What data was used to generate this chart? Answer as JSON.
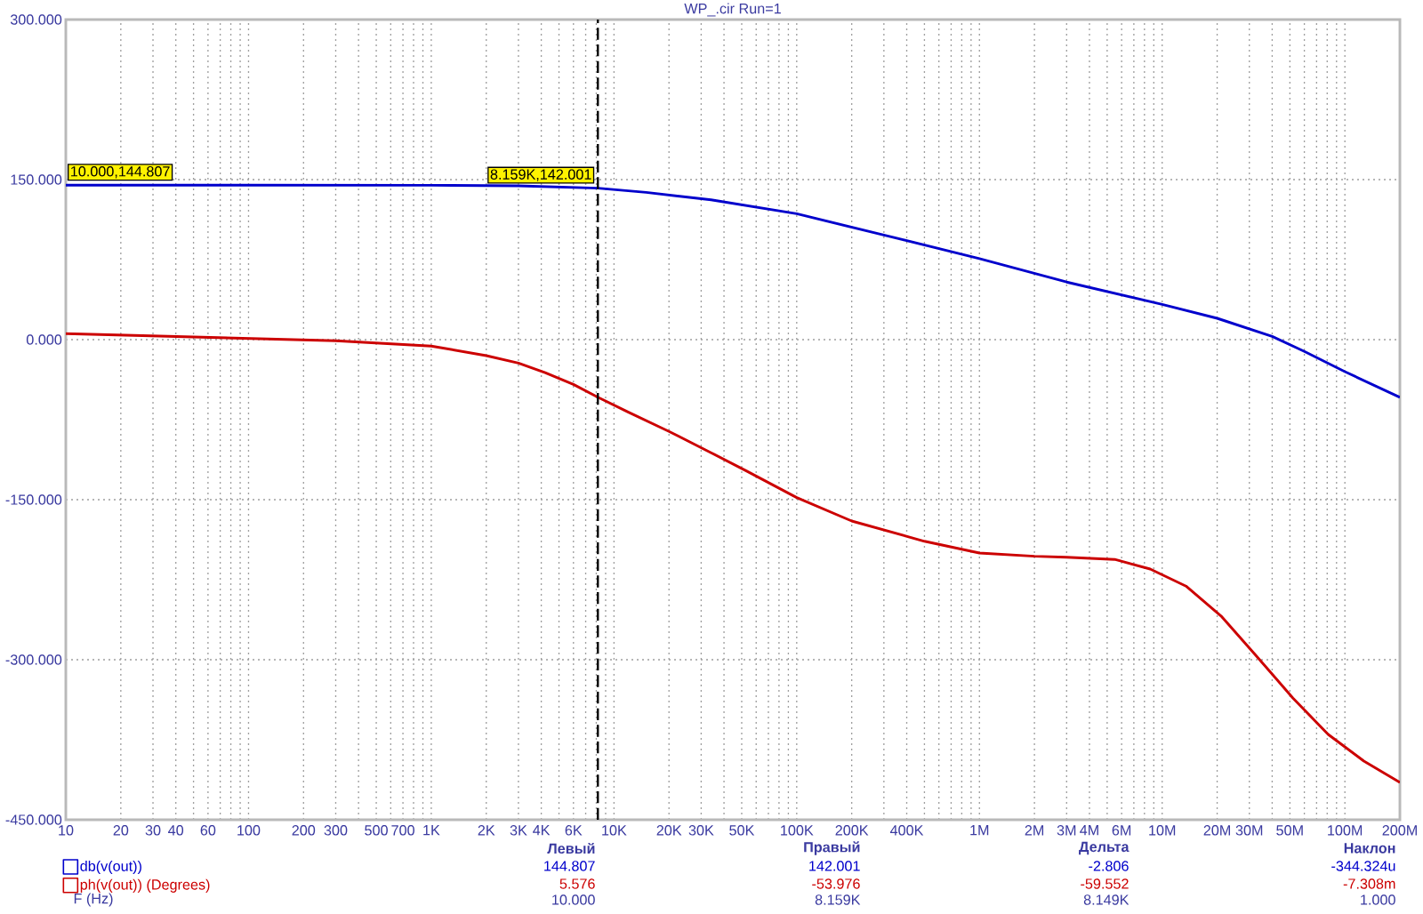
{
  "chart_data": {
    "type": "line",
    "title": "WP_.cir Run=1",
    "xlabel": "F (Hz)",
    "log": "x",
    "grid": true,
    "legend": "bottom left",
    "xlim": [
      10,
      200000000
    ],
    "ylim": [
      -450,
      300
    ],
    "xticks": [
      10,
      20,
      30,
      40,
      {
        "value": 50,
        "label": null
      },
      60,
      {
        "value": 70,
        "label": null
      },
      {
        "value": 80,
        "label": null
      },
      {
        "value": 90,
        "label": null
      },
      100,
      200,
      300,
      {
        "value": 400,
        "label": null
      },
      500,
      {
        "value": 600,
        "label": null
      },
      700,
      {
        "value": 800,
        "label": null
      },
      {
        "value": 900,
        "label": null
      },
      {
        "value": 1000,
        "label": "1K"
      },
      {
        "value": 2000,
        "label": "2K"
      },
      {
        "value": 3000,
        "label": "3K"
      },
      {
        "value": 4000,
        "label": "4K"
      },
      {
        "value": 5000,
        "label": null
      },
      {
        "value": 6000,
        "label": "6K"
      },
      {
        "value": 7000,
        "label": null
      },
      {
        "value": 8000,
        "label": null
      },
      {
        "value": 9000,
        "label": null
      },
      {
        "value": 10000,
        "label": "10K"
      },
      {
        "value": 20000,
        "label": "20K"
      },
      {
        "value": 30000,
        "label": "30K"
      },
      {
        "value": 40000,
        "label": null
      },
      {
        "value": 50000,
        "label": "50K"
      },
      {
        "value": 60000,
        "label": null
      },
      {
        "value": 70000,
        "label": null
      },
      {
        "value": 80000,
        "label": null
      },
      {
        "value": 90000,
        "label": null
      },
      {
        "value": 100000,
        "label": "100K"
      },
      {
        "value": 200000,
        "label": "200K"
      },
      {
        "value": 300000,
        "label": null
      },
      {
        "value": 400000,
        "label": "400K"
      },
      {
        "value": 500000,
        "label": null
      },
      {
        "value": 600000,
        "label": null
      },
      {
        "value": 700000,
        "label": null
      },
      {
        "value": 800000,
        "label": null
      },
      {
        "value": 900000,
        "label": null
      },
      {
        "value": 1000000,
        "label": "1M"
      },
      {
        "value": 2000000,
        "label": "2M"
      },
      {
        "value": 3000000,
        "label": "3M"
      },
      {
        "value": 4000000,
        "label": "4M"
      },
      {
        "value": 5000000,
        "label": null
      },
      {
        "value": 6000000,
        "label": "6M"
      },
      {
        "value": 7000000,
        "label": null
      },
      {
        "value": 8000000,
        "label": null
      },
      {
        "value": 9000000,
        "label": null
      },
      {
        "value": 10000000,
        "label": "10M"
      },
      {
        "value": 20000000,
        "label": "20M"
      },
      {
        "value": 30000000,
        "label": "30M"
      },
      {
        "value": 40000000,
        "label": null
      },
      {
        "value": 50000000,
        "label": "50M"
      },
      {
        "value": 60000000,
        "label": null
      },
      {
        "value": 70000000,
        "label": null
      },
      {
        "value": 80000000,
        "label": null
      },
      {
        "value": 90000000,
        "label": null
      },
      {
        "value": 100000000,
        "label": "100M"
      },
      {
        "value": 200000000,
        "label": "200M"
      }
    ],
    "yticks": [
      {
        "value": 300,
        "label": "300.000"
      },
      {
        "value": 150,
        "label": "150.000"
      },
      {
        "value": 0,
        "label": "0.000"
      },
      {
        "value": -150,
        "label": "-150.000"
      },
      {
        "value": -300,
        "label": "-300.000"
      },
      {
        "value": -450,
        "label": "-450.000"
      }
    ],
    "series": [
      {
        "name": "db(v(out))",
        "color": "#0000cc",
        "x": [
          10,
          100,
          1000,
          3000,
          8159,
          15000,
          34000,
          100000,
          300000,
          1000000,
          3000000,
          10000000,
          20000000,
          40000000,
          60000000,
          100000000,
          200000000
        ],
        "values": [
          144.807,
          144.8,
          144.7,
          144.2,
          142.001,
          138,
          131,
          118,
          98,
          76,
          54,
          33,
          20,
          3,
          -11,
          -30,
          -54
        ]
      },
      {
        "name": "ph(v(out)) (Degrees)",
        "color": "#cc0000",
        "x": [
          10,
          50,
          300,
          1000,
          2000,
          3000,
          4200,
          6000,
          8159,
          12000,
          20000,
          34000,
          53000,
          100000,
          200000,
          500000,
          1000000,
          2000000,
          3000000,
          5500000,
          8600000,
          13500000,
          21000000,
          33000000,
          52000000,
          81000000,
          127000000,
          200000000
        ],
        "values": [
          5.576,
          2.5,
          -1,
          -6,
          -15,
          -22,
          -31,
          -42,
          -53.976,
          -68,
          -86,
          -106,
          -123,
          -148,
          -170,
          -189,
          -200,
          -203,
          -204,
          -206,
          -215,
          -231,
          -259,
          -297,
          -336,
          -370,
          -395,
          -415
        ]
      }
    ],
    "ref_lines": [
      {
        "axis": "x",
        "value": 8159,
        "color": "#000000",
        "line_style": "dashed"
      }
    ],
    "annotations": [
      {
        "text": "10.000,144.807",
        "x": 10,
        "y": 144.807
      },
      {
        "text": "8.159K,142.001",
        "x": 8159,
        "y": 142.001
      },
      "Левый",
      "Правый",
      "Дельта",
      "Наклон",
      "144.807",
      "142.001",
      "-2.806",
      "-344.324u",
      "5.576",
      "-53.976",
      "-59.552",
      "-7.308m",
      "10.000",
      "8.159K",
      "8.149K",
      "1.000"
    ]
  }
}
